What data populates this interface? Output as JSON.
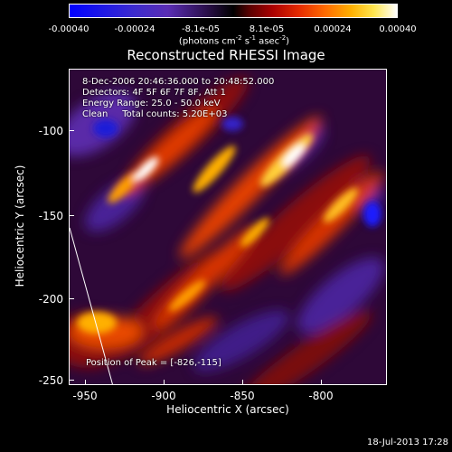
{
  "colorbar": {
    "ticks": [
      "-0.00040",
      "-0.00024",
      "-8.1e-05",
      "8.1e-05",
      "0.00024",
      "0.00040"
    ],
    "units_prefix": "(photons cm",
    "units_exp1": "-2",
    "units_mid1": " s",
    "units_exp2": "-1",
    "units_mid2": " asec",
    "units_exp3": "-2",
    "units_suffix": ")"
  },
  "title": "Reconstructed RHESSI Image",
  "info": {
    "line1": "8-Dec-2006 20:46:36.000 to 20:48:52.000",
    "line2": "Detectors: 4F 5F 6F 7F 8F, Att 1",
    "line3": "Energy Range: 25.0 - 50.0 keV",
    "line4": "Clean     Total counts: 5.20E+03",
    "peak": "Position of Peak = [-826,-115]"
  },
  "axes": {
    "xlabel": "Heliocentric X (arcsec)",
    "ylabel": "Heliocentric Y (arcsec)",
    "xticks": [
      "-950",
      "-900",
      "-850",
      "-800"
    ],
    "yticks": [
      "-100",
      "-150",
      "-200",
      "-250"
    ]
  },
  "footer": {
    "date": "18-Jul-2013 17:28"
  },
  "colors": {
    "background": "#000000",
    "foreground": "#ffffff"
  }
}
